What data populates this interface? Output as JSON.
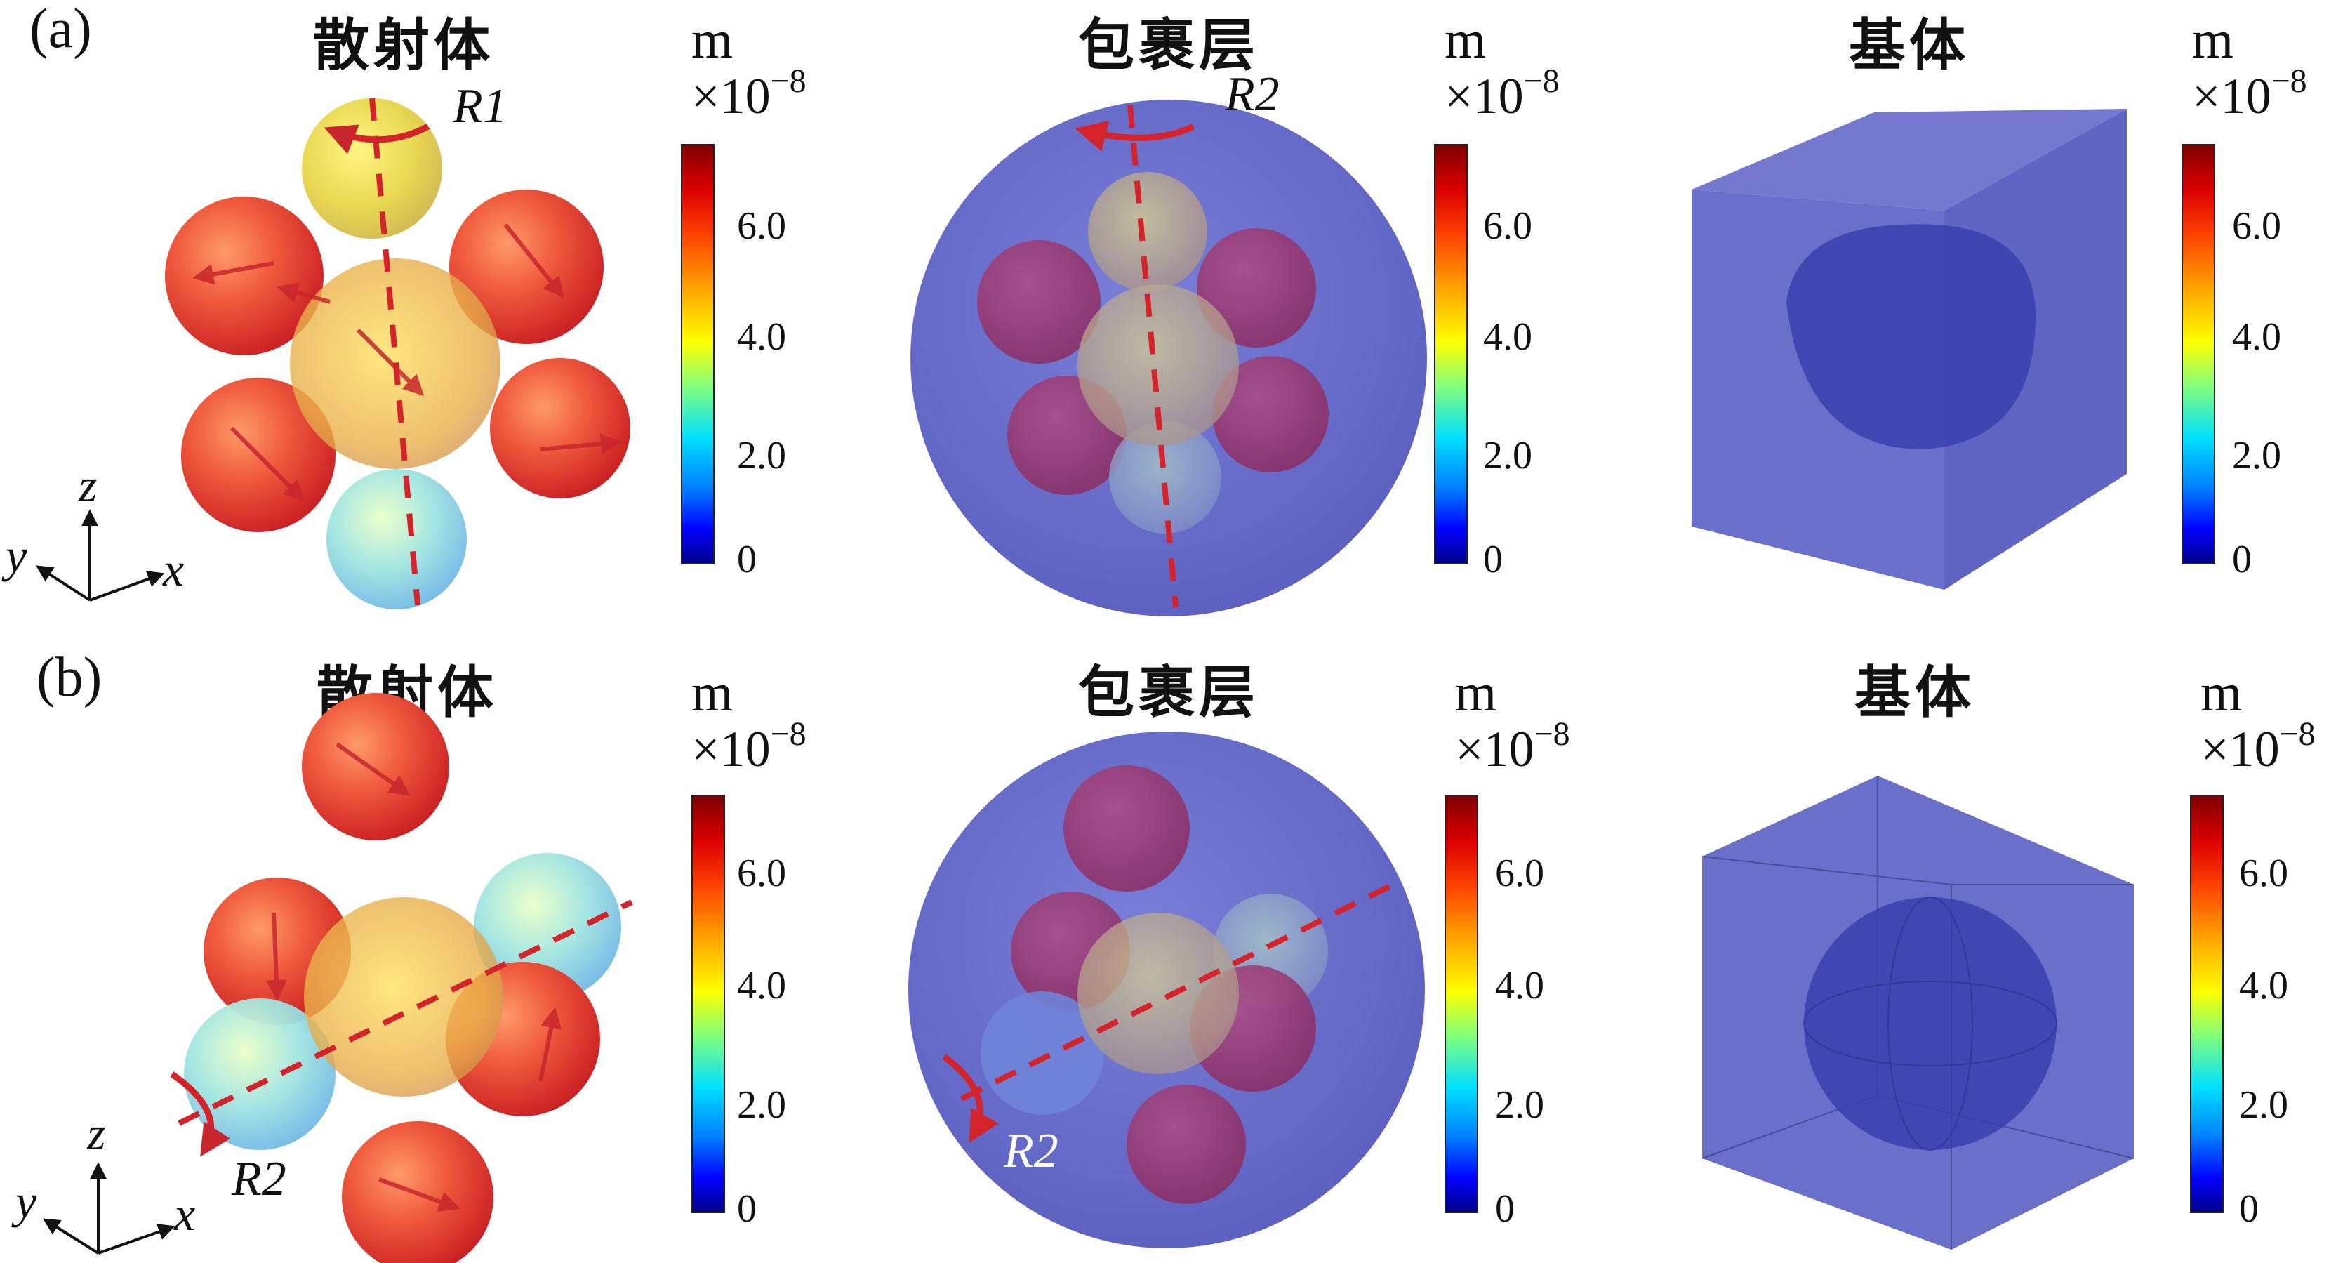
{
  "panels": {
    "a": {
      "label": "(a)",
      "scatterer_title": "散射体",
      "coating_title": "包裹层",
      "matrix_title": "基体",
      "scatterer_rotation": "R1",
      "coating_rotation": "R2"
    },
    "b": {
      "label": "(b)",
      "scatterer_title": "散射体",
      "coating_title": "包裹层",
      "matrix_title": "基体",
      "scatterer_rotation": "R2",
      "coating_rotation": "R2"
    }
  },
  "colorbar": {
    "unit": "m",
    "multiplier_base": "×10",
    "multiplier_exponent": "−8",
    "ticks": [
      "6.0",
      "4.0",
      "2.0",
      "0"
    ],
    "colors": [
      "#800000",
      "#ff4500",
      "#ffff00",
      "#00e0ff",
      "#0000ff",
      "#00008b"
    ]
  },
  "axes": {
    "z": "z",
    "y": "y",
    "x": "x"
  },
  "colors": {
    "arrow_red": "#d4232b",
    "matrix_blue": "#6a6fc9",
    "inner_blue": "#3a3fae"
  }
}
